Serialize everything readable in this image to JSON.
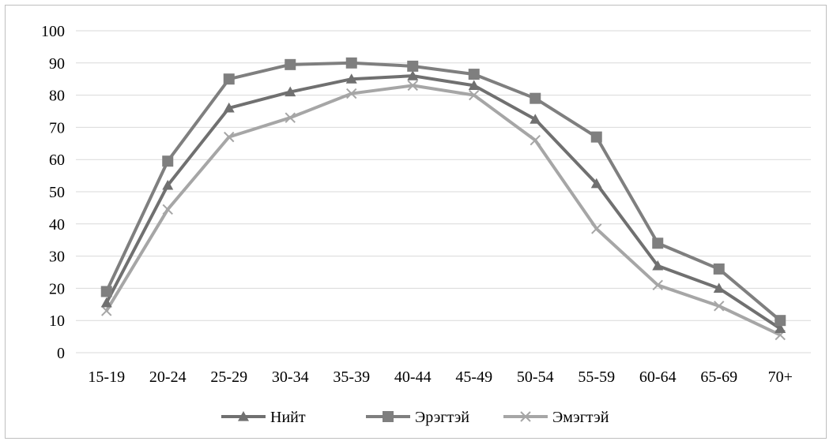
{
  "chart_data": {
    "type": "line",
    "categories": [
      "15-19",
      "20-24",
      "25-29",
      "30-34",
      "35-39",
      "40-44",
      "45-49",
      "50-54",
      "55-59",
      "60-64",
      "65-69",
      "70+"
    ],
    "y_ticks": [
      "0",
      "10",
      "20",
      "30",
      "40",
      "50",
      "60",
      "70",
      "80",
      "90",
      "100"
    ],
    "ylim": [
      0,
      100
    ],
    "grid": true,
    "legend_position": "bottom",
    "series": [
      {
        "name": "Нийт",
        "marker": "triangle",
        "color": "#707070",
        "values": [
          15.5,
          52,
          76,
          81,
          85,
          86,
          83,
          72.5,
          52.5,
          27,
          20,
          7.5
        ]
      },
      {
        "name": "Эрэгтэй",
        "marker": "square",
        "color": "#7f7f7f",
        "values": [
          19,
          59.5,
          85,
          89.5,
          90,
          89,
          86.5,
          79,
          67,
          34,
          26,
          10
        ]
      },
      {
        "name": "Эмэгтэй",
        "marker": "cross",
        "color": "#a6a6a6",
        "values": [
          13,
          44.5,
          67,
          73,
          80.5,
          83,
          80,
          66,
          38.5,
          21,
          14.5,
          5.5
        ]
      }
    ]
  }
}
